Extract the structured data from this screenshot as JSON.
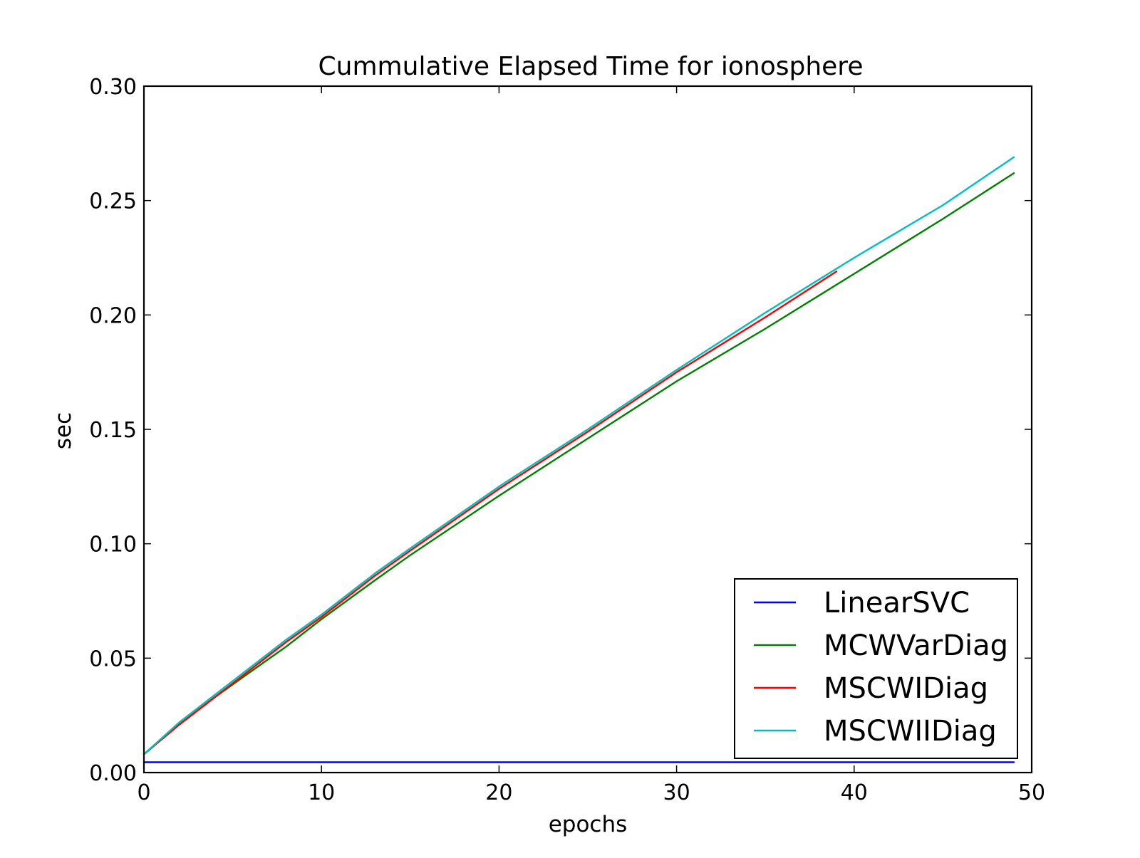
{
  "chart_data": {
    "type": "line",
    "title": "Cummulative Elapsed Time for ionosphere",
    "xlabel": "epochs",
    "ylabel": "sec",
    "xlim": [
      0,
      50
    ],
    "ylim": [
      0,
      0.3
    ],
    "xticks": [
      0,
      10,
      20,
      30,
      40,
      50
    ],
    "xtick_labels": [
      "0",
      "10",
      "20",
      "30",
      "40",
      "50"
    ],
    "yticks": [
      0,
      0.05,
      0.1,
      0.15,
      0.2,
      0.25,
      0.3
    ],
    "ytick_labels": [
      "0.00",
      "0.05",
      "0.10",
      "0.15",
      "0.20",
      "0.25",
      "0.30"
    ],
    "grid": false,
    "legend_position": "lower-right",
    "series": [
      {
        "name": "LinearSVC",
        "color": "#0000ff",
        "x": [
          0,
          10,
          20,
          30,
          40,
          49
        ],
        "y": [
          0.0045,
          0.0045,
          0.0045,
          0.0045,
          0.0045,
          0.0045
        ]
      },
      {
        "name": "MCWVarDiag",
        "color": "#008000",
        "x": [
          0,
          2,
          4,
          6,
          8,
          10,
          13,
          15,
          20,
          24,
          30,
          35,
          40,
          45,
          49
        ],
        "y": [
          0.008,
          0.021,
          0.033,
          0.044,
          0.055,
          0.067,
          0.084,
          0.095,
          0.121,
          0.141,
          0.171,
          0.194,
          0.218,
          0.242,
          0.262
        ]
      },
      {
        "name": "MSCWIDiag",
        "color": "#ff0000",
        "x": [
          0,
          2,
          4,
          6,
          8,
          10,
          13,
          15,
          20,
          25,
          30,
          35,
          39
        ],
        "y": [
          0.008,
          0.021,
          0.033,
          0.045,
          0.057,
          0.068,
          0.086,
          0.097,
          0.124,
          0.149,
          0.175,
          0.199,
          0.219
        ]
      },
      {
        "name": "MSCWIIDiag",
        "color": "#00bfbf",
        "x": [
          0,
          2,
          4,
          6,
          8,
          10,
          13,
          15,
          20,
          25,
          30,
          35,
          40,
          45,
          49
        ],
        "y": [
          0.008,
          0.022,
          0.034,
          0.046,
          0.058,
          0.069,
          0.087,
          0.098,
          0.125,
          0.15,
          0.176,
          0.201,
          0.225,
          0.248,
          0.269
        ]
      }
    ]
  }
}
